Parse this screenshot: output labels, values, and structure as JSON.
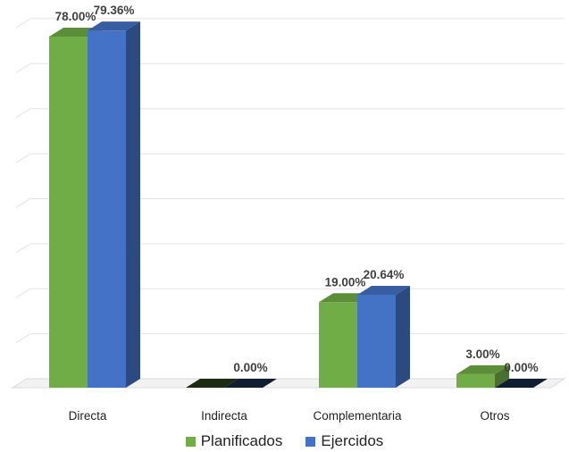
{
  "chart_data": {
    "type": "bar",
    "categories": [
      "Directa",
      "Indirecta",
      "Complementaria",
      "Otros"
    ],
    "series": [
      {
        "name": "Planificados",
        "values": [
          78.0,
          0.0,
          19.0,
          3.0
        ],
        "labels": [
          "78.00%",
          "",
          "19.00%",
          "3.00%"
        ],
        "color": "#70ad47"
      },
      {
        "name": "Ejercidos",
        "values": [
          79.36,
          0.0,
          20.64,
          0.0
        ],
        "labels": [
          "79.36%",
          "0.00%",
          "20.64%",
          "0.00%"
        ],
        "color": "#4472c4"
      }
    ],
    "ylim": [
      0,
      80
    ],
    "grid": true,
    "legend_position": "bottom",
    "style": "3d-column"
  }
}
